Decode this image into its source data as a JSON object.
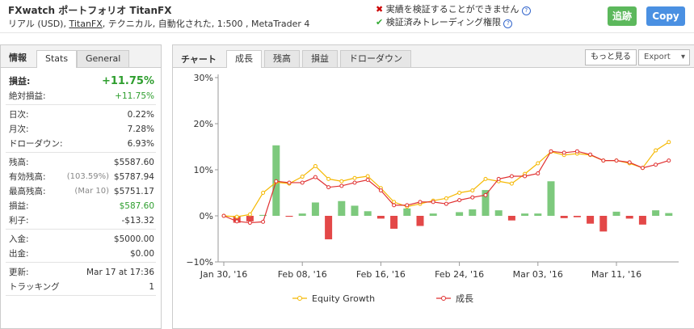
{
  "header": {
    "title": "FXwatch ポートフォリオ TitanFX",
    "subtitle_prefix": "リアル (USD), ",
    "subtitle_link": "TitanFX",
    "subtitle_suffix": ", テクニカル, 自動化された, 1:500 , MetaTrader 4",
    "verify_fail": "実績を検証することができません",
    "verify_ok": "検証済みトレーディング権限",
    "follow_button": "追跡",
    "copy_button": "Copy"
  },
  "stats_panel": {
    "tabs": [
      "情報",
      "Stats",
      "General"
    ],
    "active_tab": 1,
    "groups": [
      [
        {
          "label": "損益:",
          "value": "+11.75%",
          "green": true,
          "bold": true
        },
        {
          "label": "絶対損益:",
          "value": "+11.75%",
          "green": true
        }
      ],
      [
        {
          "label": "日次:",
          "value": "0.22%"
        },
        {
          "label": "月次:",
          "value": "7.28%"
        },
        {
          "label": "ドローダウン:",
          "value": "6.93%"
        }
      ],
      [
        {
          "label": "残高:",
          "value": "$5587.60"
        },
        {
          "label": "有効残高:",
          "note": "(103.59%)",
          "value": "$5787.94"
        },
        {
          "label": "最高残高:",
          "note": "(Mar 10)",
          "value": "$5751.17"
        },
        {
          "label": "損益:",
          "value": "$587.60",
          "green": true
        },
        {
          "label": "利子:",
          "value": "-$13.32"
        }
      ],
      [
        {
          "label": "入金:",
          "value": "$5000.00"
        },
        {
          "label": "出金:",
          "value": "$0.00"
        }
      ],
      [
        {
          "label": "更新:",
          "value": "Mar 17 at 17:36"
        },
        {
          "label": "トラッキング",
          "value": "1"
        }
      ]
    ]
  },
  "chart_panel": {
    "label": "チャート",
    "tabs": [
      "成長",
      "残高",
      "損益",
      "ドローダウン"
    ],
    "active_tab": 0,
    "more_button": "もっと見る",
    "export_button": "Export"
  },
  "chart_data": {
    "type": "line",
    "grid": false,
    "categories": [
      "Jan 30, '16",
      null,
      null,
      null,
      null,
      null,
      "Feb 08, '16",
      null,
      null,
      null,
      null,
      null,
      "Feb 16, '16",
      null,
      null,
      null,
      null,
      null,
      "Feb 24, '16",
      null,
      null,
      null,
      null,
      null,
      "Mar 03, '16",
      null,
      null,
      null,
      null,
      null,
      "Mar 11, '16",
      null,
      null,
      null,
      null
    ],
    "ylim": [
      -10,
      30
    ],
    "yticks": [
      {
        "value": -10,
        "label": "−10%"
      },
      {
        "value": 0,
        "label": "0%"
      },
      {
        "value": 10,
        "label": "10%"
      },
      {
        "value": 20,
        "label": "20%"
      },
      {
        "value": 30,
        "label": "30%"
      }
    ],
    "series": [
      {
        "name": "Equity Growth",
        "color": "#f5b800",
        "values": [
          0,
          -0.2,
          0.3,
          5,
          7.3,
          7,
          8.5,
          10.8,
          8,
          7.5,
          8.2,
          8.6,
          6,
          3,
          2,
          2.6,
          3.3,
          3.8,
          5,
          5.5,
          8,
          7.5,
          7,
          9.1,
          11.4,
          13.9,
          13.2,
          13.5,
          13.2,
          12,
          12,
          11.4,
          10.4,
          14.2,
          16
        ]
      },
      {
        "name": "成長",
        "color": "#e03030",
        "values": [
          0,
          -1.2,
          -1.5,
          -1.3,
          7.5,
          7.2,
          7.2,
          8.4,
          6.2,
          6.5,
          7.2,
          7.8,
          5.5,
          2.3,
          2.3,
          3,
          3,
          2.6,
          3.4,
          4,
          4.5,
          8,
          8.6,
          8.6,
          9.2,
          14,
          13.7,
          14,
          13.3,
          12,
          12,
          11.6,
          10.4,
          11.1,
          12
        ]
      }
    ],
    "bars": {
      "positive_color": "#7dc97d",
      "negative_color": "#e34848",
      "values": [
        0,
        -1.5,
        -1.2,
        0.2,
        15.3,
        -0.2,
        0.5,
        2.9,
        -5.1,
        3.2,
        2.2,
        1,
        -0.6,
        -2.8,
        1.6,
        -2.2,
        0.5,
        0,
        0.8,
        1.4,
        5.6,
        1.2,
        -1,
        0.5,
        0.5,
        7.5,
        -0.5,
        -0.3,
        -1.7,
        -3.4,
        0.9,
        -0.6,
        -1.9,
        1.2,
        0.6
      ]
    }
  }
}
